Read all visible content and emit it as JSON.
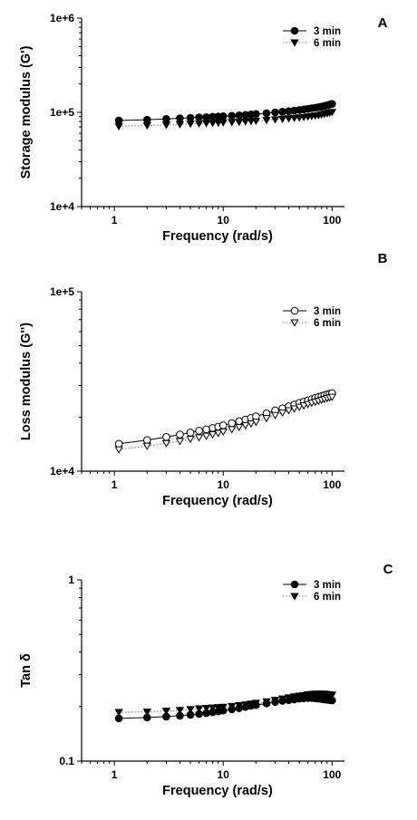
{
  "chart_data": [
    {
      "panel": "A",
      "type": "scatter",
      "title": "",
      "xlabel": "Frequency (rad/s)",
      "ylabel": "Storage modulus (G')",
      "x_scale": "log",
      "y_scale": "log",
      "xlim": [
        0.5,
        130
      ],
      "ylim": [
        10000,
        1000000
      ],
      "x_ticks": [
        {
          "value": 1,
          "label": "1"
        },
        {
          "value": 10,
          "label": "10"
        },
        {
          "value": 100,
          "label": "100"
        }
      ],
      "y_ticks": [
        {
          "value": 10000,
          "label": "1e+4"
        },
        {
          "value": 100000,
          "label": "1e+5"
        },
        {
          "value": 1000000,
          "label": "1e+6"
        }
      ],
      "legend_position": "top-right",
      "grid": false,
      "series": [
        {
          "name": "3 min",
          "marker": "filled-circle",
          "line": "solid",
          "x": [
            1.1,
            2,
            3,
            4,
            5,
            6,
            7,
            8,
            9,
            10,
            12,
            14,
            16,
            18,
            20,
            25,
            30,
            35,
            40,
            45,
            50,
            55,
            60,
            65,
            70,
            75,
            80,
            85,
            90,
            95,
            100
          ],
          "y": [
            82000,
            83500,
            85000,
            86500,
            87500,
            88500,
            89000,
            90000,
            90500,
            91000,
            92000,
            93000,
            94000,
            95000,
            96000,
            98000,
            100000,
            101500,
            103000,
            104500,
            106000,
            107500,
            109000,
            110500,
            112000,
            113500,
            115000,
            117000,
            119000,
            121000,
            123000
          ]
        },
        {
          "name": "6 min",
          "marker": "filled-triangle-down",
          "line": "dotted",
          "x": [
            1.1,
            2,
            3,
            4,
            5,
            6,
            7,
            8,
            9,
            10,
            12,
            14,
            16,
            18,
            20,
            25,
            30,
            35,
            40,
            45,
            50,
            55,
            60,
            65,
            70,
            75,
            80,
            85,
            90,
            95,
            100
          ],
          "y": [
            71000,
            72500,
            73500,
            74500,
            75500,
            76000,
            76500,
            77000,
            77500,
            78000,
            78500,
            79000,
            80000,
            80500,
            81000,
            82500,
            84000,
            85000,
            86000,
            87000,
            88000,
            89000,
            90000,
            91000,
            92000,
            93000,
            94500,
            96000,
            97500,
            99000,
            100500
          ]
        }
      ]
    },
    {
      "panel": "B",
      "type": "scatter",
      "title": "",
      "xlabel": "Frequency (rad/s)",
      "ylabel": "Loss modulus (G'')",
      "x_scale": "log",
      "y_scale": "log",
      "xlim": [
        0.5,
        130
      ],
      "ylim": [
        10000,
        100000
      ],
      "x_ticks": [
        {
          "value": 1,
          "label": "1"
        },
        {
          "value": 10,
          "label": "10"
        },
        {
          "value": 100,
          "label": "100"
        }
      ],
      "y_ticks": [
        {
          "value": 10000,
          "label": "1e+4"
        },
        {
          "value": 100000,
          "label": "1e+5"
        }
      ],
      "legend_position": "top-right",
      "grid": false,
      "series": [
        {
          "name": "3 min",
          "marker": "open-circle",
          "line": "solid",
          "x": [
            1.1,
            2,
            3,
            4,
            5,
            6,
            7,
            8,
            9,
            10,
            12,
            14,
            16,
            18,
            20,
            25,
            30,
            35,
            40,
            45,
            50,
            55,
            60,
            65,
            70,
            75,
            80,
            85,
            90,
            95,
            100
          ],
          "y": [
            14200,
            14900,
            15500,
            16000,
            16400,
            16800,
            17100,
            17400,
            17700,
            18000,
            18500,
            19000,
            19400,
            19800,
            20200,
            21000,
            21800,
            22400,
            23000,
            23500,
            24000,
            24400,
            24800,
            25200,
            25600,
            25900,
            26200,
            26500,
            26800,
            27000,
            27200
          ]
        },
        {
          "name": "6 min",
          "marker": "open-triangle-down",
          "line": "dotted",
          "x": [
            1.1,
            2,
            3,
            4,
            5,
            6,
            7,
            8,
            9,
            10,
            12,
            14,
            16,
            18,
            20,
            25,
            30,
            35,
            40,
            45,
            50,
            55,
            60,
            65,
            70,
            75,
            80,
            85,
            90,
            95,
            100
          ],
          "y": [
            13200,
            13800,
            14300,
            14700,
            15100,
            15400,
            15700,
            16000,
            16300,
            16600,
            17100,
            17600,
            18000,
            18400,
            18800,
            19700,
            20500,
            21200,
            21800,
            22300,
            22800,
            23200,
            23600,
            24000,
            24300,
            24600,
            24900,
            25200,
            25500,
            25700,
            25900
          ]
        }
      ]
    },
    {
      "panel": "C",
      "type": "scatter",
      "title": "",
      "xlabel": "Frequency (rad/s)",
      "ylabel": "Tan δ",
      "x_scale": "log",
      "y_scale": "log",
      "xlim": [
        0.5,
        130
      ],
      "ylim": [
        0.1,
        1
      ],
      "x_ticks": [
        {
          "value": 1,
          "label": "1"
        },
        {
          "value": 10,
          "label": "10"
        },
        {
          "value": 100,
          "label": "100"
        }
      ],
      "y_ticks": [
        {
          "value": 0.1,
          "label": "0.1"
        },
        {
          "value": 1,
          "label": "1"
        }
      ],
      "legend_position": "top-right",
      "grid": false,
      "series": [
        {
          "name": "3 min",
          "marker": "filled-circle",
          "line": "solid",
          "x": [
            1.1,
            2,
            3,
            4,
            5,
            6,
            7,
            8,
            9,
            10,
            12,
            14,
            16,
            18,
            20,
            25,
            30,
            35,
            40,
            45,
            50,
            55,
            60,
            65,
            70,
            75,
            80,
            85,
            90,
            95,
            100
          ],
          "y": [
            0.172,
            0.174,
            0.176,
            0.178,
            0.18,
            0.182,
            0.184,
            0.186,
            0.188,
            0.19,
            0.193,
            0.196,
            0.199,
            0.202,
            0.204,
            0.208,
            0.212,
            0.215,
            0.217,
            0.219,
            0.221,
            0.222,
            0.223,
            0.223,
            0.222,
            0.221,
            0.22,
            0.219,
            0.218,
            0.217,
            0.216
          ]
        },
        {
          "name": "6 min",
          "marker": "filled-triangle-down",
          "line": "dotted",
          "x": [
            1.1,
            2,
            3,
            4,
            5,
            6,
            7,
            8,
            9,
            10,
            12,
            14,
            16,
            18,
            20,
            25,
            30,
            35,
            40,
            45,
            50,
            55,
            60,
            65,
            70,
            75,
            80,
            85,
            90,
            95,
            100
          ],
          "y": [
            0.186,
            0.187,
            0.189,
            0.191,
            0.193,
            0.195,
            0.196,
            0.197,
            0.198,
            0.199,
            0.201,
            0.203,
            0.205,
            0.207,
            0.209,
            0.213,
            0.217,
            0.221,
            0.224,
            0.227,
            0.229,
            0.231,
            0.233,
            0.234,
            0.235,
            0.235,
            0.235,
            0.235,
            0.234,
            0.233,
            0.232
          ]
        }
      ]
    }
  ]
}
